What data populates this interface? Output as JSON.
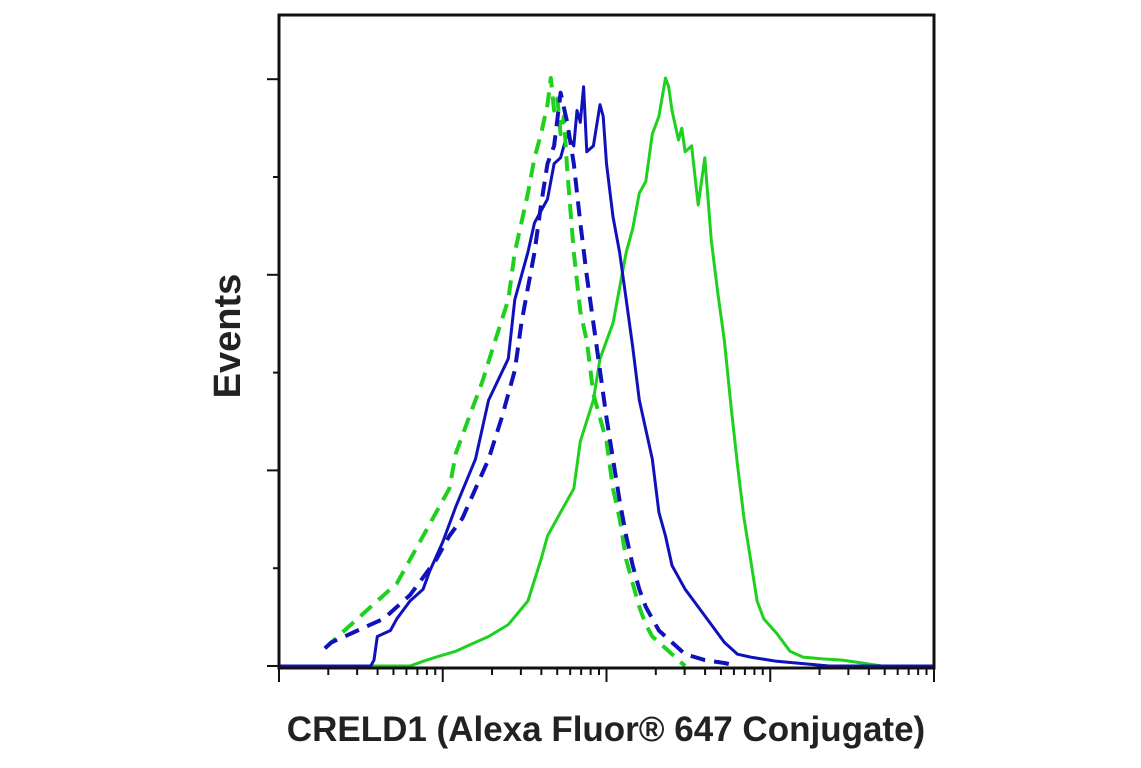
{
  "chart_data": {
    "type": "line",
    "title": "",
    "xlabel": "CRELD1 (Alexa Fluor® 647 Conjugate)",
    "ylabel": "Events",
    "x_scale": "log",
    "x_tick_labels_shown": false,
    "y_tick_labels_shown": false,
    "xlim": [
      0,
      100
    ],
    "ylim": [
      0,
      100
    ],
    "grid": false,
    "legend": "none",
    "series": [
      {
        "style": "solid",
        "color": "#1fd11f",
        "x": [
          0,
          20,
          22,
          24,
          27,
          29,
          32,
          35,
          38,
          40,
          41,
          43,
          45,
          46,
          48,
          49,
          51,
          52,
          53,
          54,
          55,
          56,
          57,
          58,
          59,
          59.5,
          60,
          61,
          61.5,
          62,
          63,
          64,
          65,
          66,
          67,
          68,
          69,
          70,
          71,
          72,
          73,
          74,
          76,
          78,
          80,
          83,
          86,
          89,
          92,
          100
        ],
        "y": [
          0,
          0,
          0.8,
          1.5,
          2.5,
          3.5,
          5,
          7,
          11,
          18,
          22,
          26,
          30,
          38,
          45,
          52,
          58,
          64,
          70,
          74,
          80,
          82,
          90,
          93,
          99.5,
          98,
          94,
          89,
          91,
          87,
          88,
          78,
          86,
          72,
          63,
          55,
          44,
          34,
          25,
          18,
          11,
          8,
          5.5,
          2.5,
          1.5,
          1.2,
          1,
          0.5,
          0,
          0
        ]
      },
      {
        "style": "solid",
        "color": "#1111bb",
        "x": [
          0,
          14,
          14.5,
          15,
          17,
          18,
          20,
          22,
          23,
          25,
          27,
          30,
          32,
          35,
          36,
          38,
          39,
          41,
          42,
          43,
          44,
          45,
          45.5,
          46,
          46.5,
          47,
          48,
          49,
          49.5,
          50,
          51,
          52,
          53,
          54,
          55,
          57,
          58,
          59,
          60,
          62,
          64,
          66,
          68,
          70,
          72,
          76,
          80,
          84,
          100
        ],
        "y": [
          0,
          0,
          1,
          5,
          6,
          8,
          11,
          13,
          16,
          21,
          27,
          35,
          45,
          52,
          62,
          70,
          75,
          79,
          85,
          86,
          90,
          88,
          94,
          92,
          98,
          87,
          88,
          95,
          93,
          85,
          76,
          70,
          62,
          54,
          45,
          35,
          26,
          22,
          17,
          13,
          10,
          7,
          4,
          2,
          1.5,
          0.8,
          0.4,
          0,
          0
        ]
      },
      {
        "style": "dashed",
        "color": "#1fd11f",
        "x": [
          7,
          8,
          9,
          10,
          12,
          14,
          16,
          18,
          20,
          22,
          24,
          26,
          27,
          29,
          31,
          33,
          35,
          36,
          37,
          38,
          39,
          40,
          41,
          41.5,
          42,
          42.5,
          43,
          43.5,
          44,
          45,
          46,
          47,
          48,
          50,
          51,
          52,
          53,
          54,
          55,
          56,
          57,
          58,
          59,
          60,
          61,
          62
        ],
        "y": [
          3,
          4,
          5,
          6,
          8,
          10,
          12,
          14,
          18,
          22,
          26,
          30,
          36,
          42,
          48,
          55,
          62,
          70,
          75,
          80,
          86,
          90,
          95,
          99.5,
          94,
          96,
          90,
          93,
          84,
          70,
          60,
          55,
          46,
          38,
          30,
          25,
          18,
          14,
          10,
          7,
          5,
          4,
          3,
          2,
          1,
          0
        ]
      },
      {
        "style": "dashed",
        "color": "#1111bb",
        "x": [
          7,
          8,
          9,
          10,
          12,
          14,
          16,
          18,
          20,
          22,
          24,
          26,
          28,
          30,
          32,
          34,
          36,
          37,
          38,
          39,
          40,
          41,
          42,
          43,
          44,
          45,
          46,
          47,
          48,
          49,
          50,
          51,
          52,
          53,
          54,
          55,
          56,
          57,
          58,
          60,
          62,
          65,
          68,
          70
        ],
        "y": [
          3,
          4,
          4.5,
          5,
          6,
          7,
          8,
          10,
          12,
          15,
          18,
          22,
          25,
          30,
          35,
          42,
          50,
          58,
          64,
          70,
          78,
          85,
          88,
          97,
          92,
          85,
          75,
          66,
          58,
          50,
          42,
          35,
          28,
          22,
          17,
          13,
          10,
          8,
          6,
          4,
          2,
          1,
          0.5,
          0
        ]
      }
    ]
  }
}
